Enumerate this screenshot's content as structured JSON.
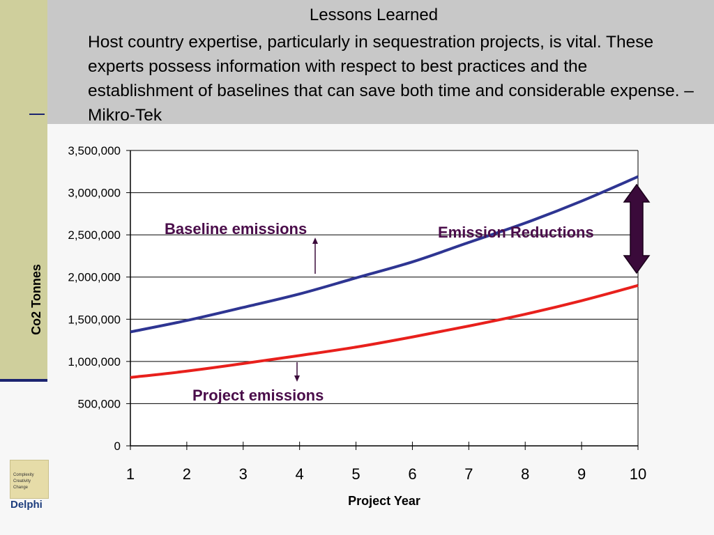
{
  "header": {
    "title": "Lessons Learned",
    "quote": "Host country expertise, particularly in sequestration projects, is vital. These experts possess information with respect to best practices and the establishment of baselines that can save both time and considerable expense. – Mikro-Tek"
  },
  "logo": {
    "lines": [
      "Complexity",
      "Creativity",
      "Change"
    ],
    "name": "Delphi"
  },
  "colors": {
    "baseline": "#2e3592",
    "project": "#e8201c",
    "arrow": "#3a0a3a",
    "annotation": "#4a0d4a"
  },
  "chart_data": {
    "type": "line",
    "x": [
      1,
      2,
      3,
      4,
      5,
      6,
      7,
      8,
      9,
      10
    ],
    "series": [
      {
        "name": "Baseline emissions",
        "values": [
          1350000,
          1485000,
          1640000,
          1800000,
          1990000,
          2180000,
          2410000,
          2640000,
          2900000,
          3190000
        ]
      },
      {
        "name": "Project emissions",
        "values": [
          810000,
          885000,
          975000,
          1070000,
          1170000,
          1290000,
          1420000,
          1560000,
          1720000,
          1900000
        ]
      }
    ],
    "yticks": [
      "0",
      "500,000",
      "1,000,000",
      "1,500,000",
      "2,000,000",
      "2,500,000",
      "3,000,000",
      "3,500,000"
    ],
    "xticks": [
      "1",
      "2",
      "3",
      "4",
      "5",
      "6",
      "7",
      "8",
      "9",
      "10"
    ],
    "xlabel": "Project Year",
    "ylabel": "Co2 Tonnes",
    "ylim": [
      0,
      3500000
    ],
    "xlim": [
      1,
      10
    ],
    "grid": true,
    "annotations": {
      "reductions": "Emission Reductions"
    }
  }
}
